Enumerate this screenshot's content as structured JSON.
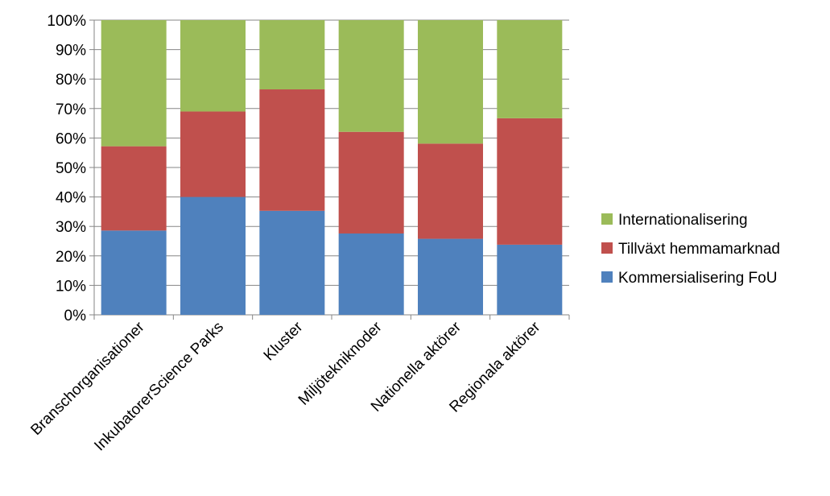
{
  "chart_data": {
    "type": "bar",
    "stacked": true,
    "percent": true,
    "categories": [
      "Branschorganisationer",
      "InkubatorerScience Parks",
      "Kluster",
      "Miljötekniknoder",
      "Nationella aktörer",
      "Regionala aktörer"
    ],
    "series": [
      {
        "name": "Kommersialisering FoU",
        "color": "#4F81BD",
        "values": [
          28.6,
          40.0,
          35.3,
          27.6,
          25.8,
          23.8
        ]
      },
      {
        "name": "Tillväxt hemmamarknad",
        "color": "#C0504D",
        "values": [
          28.6,
          29.0,
          41.2,
          34.5,
          32.3,
          42.9
        ]
      },
      {
        "name": "Internationalisering",
        "color": "#9BBB59",
        "values": [
          42.8,
          31.0,
          23.5,
          37.9,
          41.9,
          33.3
        ]
      }
    ],
    "y_ticks": [
      "0%",
      "10%",
      "20%",
      "30%",
      "40%",
      "50%",
      "60%",
      "70%",
      "80%",
      "90%",
      "100%"
    ],
    "ylim": [
      0,
      100
    ],
    "grid": true,
    "legend_position": "right",
    "legend_order": [
      "Internationalisering",
      "Tillväxt hemmamarknad",
      "Kommersialisering FoU"
    ],
    "title": "",
    "xlabel": "",
    "ylabel": ""
  }
}
